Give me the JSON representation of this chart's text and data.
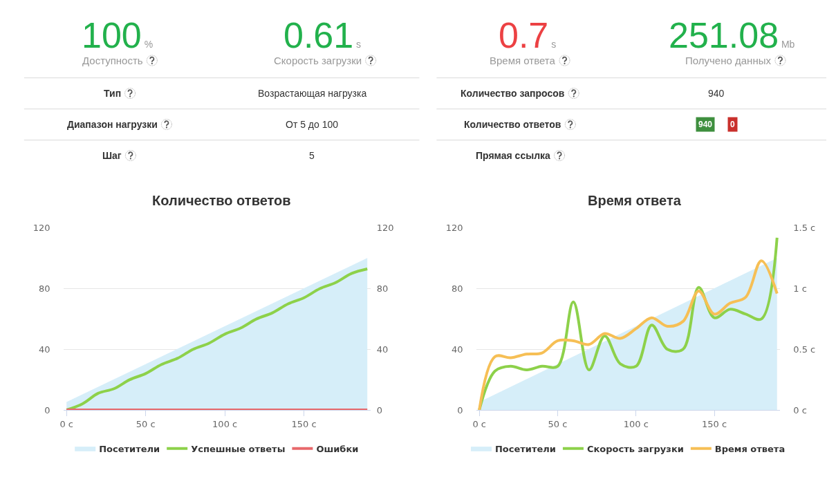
{
  "chart_data": [
    {
      "type": "other",
      "categories": [
        "Доступность",
        "Скорость загрузки",
        "Время ответа",
        "Получено данных"
      ],
      "values": [
        100,
        0.61,
        0.7,
        251.08
      ],
      "data_labels": true,
      "colors": [
        "#22b14c",
        "#22b14c",
        "#ec4143",
        "#22b14c"
      ],
      "annotations": [
        "%",
        "s",
        "s",
        "Mb"
      ]
    },
    {
      "type": "other",
      "categories": [
        "Тип",
        "Диапазон нагрузки",
        "Шаг",
        "Количество запросов",
        "Количество ответов",
        "Прямая ссылка"
      ],
      "value_labels": [
        "Возрастающая нагрузка",
        "От 5 до 100",
        "5",
        "940",
        null,
        null
      ],
      "annotations": [
        "940",
        "0"
      ],
      "colors": [
        "#3e8f3e",
        "#c9302c"
      ]
    },
    {
      "type": "line",
      "title": "Количество ответов",
      "x": [
        0,
        10,
        20,
        30,
        40,
        50,
        60,
        70,
        80,
        90,
        100,
        110,
        120,
        130,
        140,
        150,
        160,
        170,
        180,
        190
      ],
      "xlim": [
        -2,
        192
      ],
      "xticks": [
        {
          "value": 0,
          "label": "0 с"
        },
        {
          "value": 50,
          "label": "50 с"
        },
        {
          "value": 100,
          "label": "100 с"
        },
        {
          "value": 150,
          "label": "150 с"
        }
      ],
      "ylim": [
        0,
        120
      ],
      "yticks": [
        0,
        40,
        80,
        120
      ],
      "y2lim": [
        0,
        120
      ],
      "y2ticks": [
        0,
        40,
        80,
        120
      ],
      "grid": "y",
      "legend": "bottom",
      "series": [
        {
          "name": "Посетители",
          "type": "area",
          "color": "#d6eef9",
          "values": [
            5,
            10,
            15,
            20,
            25,
            30,
            35,
            40,
            45,
            50,
            55,
            60,
            65,
            70,
            75,
            80,
            85,
            90,
            95,
            100
          ]
        },
        {
          "name": "Успешные ответы",
          "axis": "y2",
          "color": "#8dd14a",
          "values": [
            0,
            4,
            11,
            14,
            20,
            24,
            30,
            34,
            40,
            44,
            50,
            54,
            60,
            64,
            70,
            74,
            80,
            84,
            90,
            93
          ]
        },
        {
          "name": "Ошибки",
          "axis": "y2",
          "color": "#e8686b",
          "values": [
            0,
            0,
            0,
            0,
            0,
            0,
            0,
            0,
            0,
            0,
            0,
            0,
            0,
            0,
            0,
            0,
            0,
            0,
            0,
            0
          ]
        }
      ]
    },
    {
      "type": "line",
      "title": "Время ответа",
      "x": [
        0,
        10,
        20,
        30,
        40,
        50,
        60,
        70,
        80,
        90,
        100,
        110,
        120,
        130,
        140,
        150,
        160,
        170,
        180,
        190
      ],
      "xlim": [
        -2,
        192
      ],
      "xticks": [
        {
          "value": 0,
          "label": "0 с"
        },
        {
          "value": 50,
          "label": "50 с"
        },
        {
          "value": 100,
          "label": "100 с"
        },
        {
          "value": 150,
          "label": "150 с"
        }
      ],
      "ylim": [
        0,
        120
      ],
      "yticks": [
        0,
        40,
        80,
        120
      ],
      "y2lim": [
        0,
        1.5
      ],
      "y2ticks": [
        {
          "value": 0,
          "label": "0 с"
        },
        {
          "value": 0.5,
          "label": "0.5 с"
        },
        {
          "value": 1,
          "label": "1 с"
        },
        {
          "value": 1.5,
          "label": "1.5 с"
        }
      ],
      "grid": "y",
      "legend": "bottom",
      "series": [
        {
          "name": "Посетители",
          "type": "area",
          "color": "#d6eef9",
          "values": [
            5,
            10,
            15,
            20,
            25,
            30,
            35,
            40,
            45,
            50,
            55,
            60,
            65,
            70,
            75,
            80,
            85,
            90,
            95,
            100
          ]
        },
        {
          "name": "Скорость загрузки",
          "axis": "y2",
          "color": "#8dd14a",
          "values": [
            0,
            0.32,
            0.36,
            0.33,
            0.36,
            0.36,
            0.89,
            0.33,
            0.61,
            0.38,
            0.36,
            0.7,
            0.5,
            0.5,
            1.01,
            0.76,
            0.83,
            0.79,
            0.75,
            1.42
          ]
        },
        {
          "name": "Время ответа",
          "axis": "y2",
          "color": "#f6bf55",
          "values": [
            0,
            0.44,
            0.43,
            0.46,
            0.47,
            0.57,
            0.57,
            0.54,
            0.63,
            0.59,
            0.67,
            0.76,
            0.69,
            0.73,
            0.98,
            0.79,
            0.88,
            0.93,
            1.23,
            0.96
          ]
        }
      ]
    }
  ]
}
